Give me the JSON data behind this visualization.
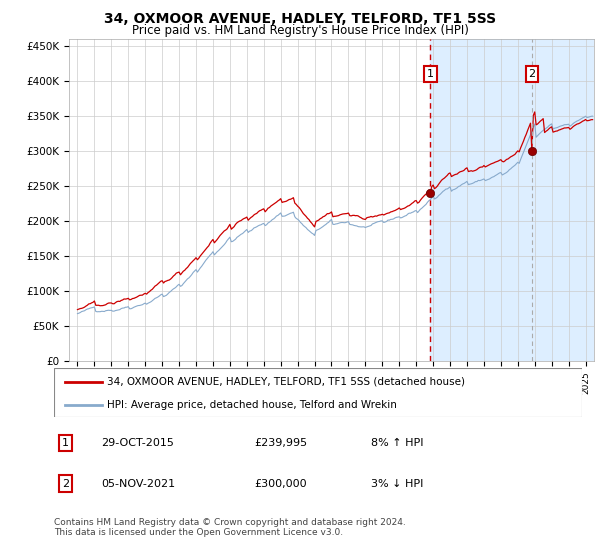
{
  "title": "34, OXMOOR AVENUE, HADLEY, TELFORD, TF1 5SS",
  "subtitle": "Price paid vs. HM Land Registry's House Price Index (HPI)",
  "ylabel_ticks": [
    "£0",
    "£50K",
    "£100K",
    "£150K",
    "£200K",
    "£250K",
    "£300K",
    "£350K",
    "£400K",
    "£450K"
  ],
  "ytick_values": [
    0,
    50000,
    100000,
    150000,
    200000,
    250000,
    300000,
    350000,
    400000,
    450000
  ],
  "ylim": [
    0,
    460000
  ],
  "xlim_start": 1994.5,
  "xlim_end": 2025.5,
  "plot_bg": "#ffffff",
  "shade_bg": "#ddeeff",
  "line1_color": "#cc0000",
  "line2_color": "#88aacc",
  "marker1_date": 2015.83,
  "marker2_date": 2021.84,
  "marker1_value": 239995,
  "marker2_value": 300000,
  "legend_line1": "34, OXMOOR AVENUE, HADLEY, TELFORD, TF1 5SS (detached house)",
  "legend_line2": "HPI: Average price, detached house, Telford and Wrekin",
  "footer": "Contains HM Land Registry data © Crown copyright and database right 2024.\nThis data is licensed under the Open Government Licence v3.0.",
  "ann1_label": "1",
  "ann1_date": "29-OCT-2015",
  "ann1_price": "£239,995",
  "ann1_pct": "8% ↑ HPI",
  "ann2_label": "2",
  "ann2_date": "05-NOV-2021",
  "ann2_price": "£300,000",
  "ann2_pct": "3% ↓ HPI"
}
